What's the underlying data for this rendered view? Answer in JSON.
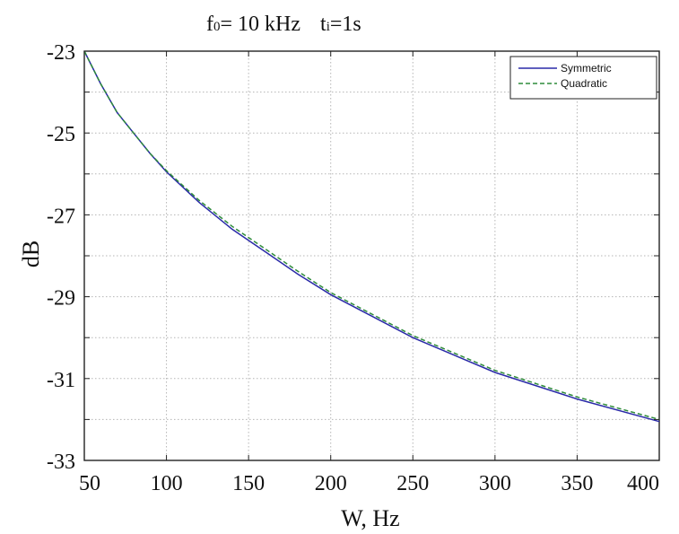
{
  "chart_data": {
    "type": "line",
    "title_parts": {
      "f_main": "f",
      "f_sub": "0",
      "f_rest": "= 10 kHz",
      "t_main": "t",
      "t_sub": "i",
      "t_rest": "=1s"
    },
    "xlabel": "W, Hz",
    "ylabel": "dB",
    "xlim": [
      50,
      400
    ],
    "ylim": [
      -33,
      -23
    ],
    "x_ticks": [
      50,
      100,
      150,
      200,
      250,
      300,
      350,
      400
    ],
    "x_tick_labels": [
      "50",
      "100",
      "150",
      "200",
      "250",
      "300",
      "350",
      "400"
    ],
    "y_ticks_labeled": [
      -23,
      -25,
      -27,
      -29,
      -31,
      -33
    ],
    "y_tick_labels": [
      "-23",
      "-25",
      "-27",
      "-29",
      "-31",
      "-33"
    ],
    "y_gridlines": [
      -23,
      -24,
      -25,
      -26,
      -27,
      -28,
      -29,
      -30,
      -31,
      -32,
      -33
    ],
    "grid": true,
    "legend_position": "top-right",
    "series": [
      {
        "name": "Symmetric",
        "color": "#2a2aa8",
        "style": "solid",
        "x": [
          50,
          60,
          70,
          80,
          90,
          100,
          120,
          140,
          160,
          180,
          200,
          250,
          300,
          350,
          400
        ],
        "y": [
          -23.0,
          -23.8,
          -24.5,
          -25.0,
          -25.5,
          -25.95,
          -26.7,
          -27.35,
          -27.9,
          -28.45,
          -28.95,
          -30.0,
          -30.85,
          -31.5,
          -32.05
        ]
      },
      {
        "name": "Quadratic",
        "color": "#2e8b3a",
        "style": "dashed",
        "x": [
          50,
          60,
          70,
          80,
          90,
          100,
          120,
          140,
          160,
          180,
          200,
          250,
          300,
          350,
          400
        ],
        "y": [
          -23.0,
          -23.8,
          -24.5,
          -25.0,
          -25.5,
          -25.92,
          -26.65,
          -27.28,
          -27.83,
          -28.38,
          -28.9,
          -29.95,
          -30.8,
          -31.45,
          -32.0
        ]
      }
    ]
  }
}
